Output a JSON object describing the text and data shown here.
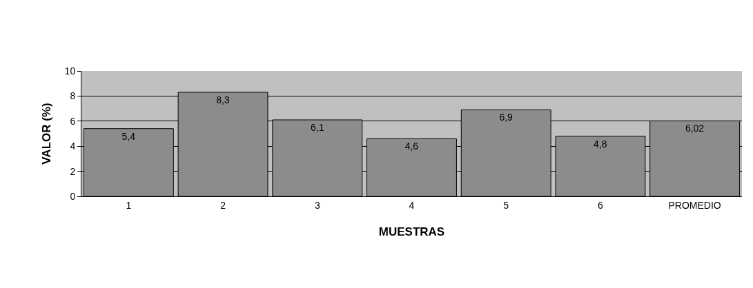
{
  "chart_data": {
    "type": "bar",
    "xlabel": "MUESTRAS",
    "ylabel": "VALOR (%)",
    "categories": [
      "1",
      "2",
      "3",
      "4",
      "5",
      "6",
      "PROMEDIO"
    ],
    "values": [
      5.4,
      8.3,
      6.1,
      4.6,
      6.9,
      4.8,
      6.02
    ],
    "value_labels": [
      "5,4",
      "8,3",
      "6,1",
      "4,6",
      "6,9",
      "4,8",
      "6,02"
    ],
    "color": "#8c8c8c",
    "ylim": [
      0,
      10
    ],
    "yticks": [
      0,
      2,
      4,
      6,
      8,
      10
    ],
    "grid": "y",
    "legend": false
  }
}
